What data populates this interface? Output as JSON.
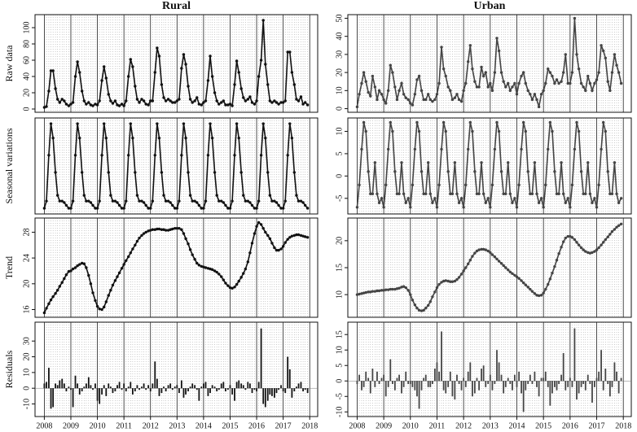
{
  "chart_data": {
    "type": "panels",
    "x": [
      2008,
      2008.08,
      2008.17,
      2008.25,
      2008.33,
      2008.42,
      2008.5,
      2008.58,
      2008.67,
      2008.75,
      2008.83,
      2008.92,
      2009,
      2009.08,
      2009.17,
      2009.25,
      2009.33,
      2009.42,
      2009.5,
      2009.58,
      2009.67,
      2009.75,
      2009.83,
      2009.92,
      2010,
      2010.08,
      2010.17,
      2010.25,
      2010.33,
      2010.42,
      2010.5,
      2010.58,
      2010.67,
      2010.75,
      2010.83,
      2010.92,
      2011,
      2011.08,
      2011.17,
      2011.25,
      2011.33,
      2011.42,
      2011.5,
      2011.58,
      2011.67,
      2011.75,
      2011.83,
      2011.92,
      2012,
      2012.08,
      2012.17,
      2012.25,
      2012.33,
      2012.42,
      2012.5,
      2012.58,
      2012.67,
      2012.75,
      2012.83,
      2012.92,
      2013,
      2013.08,
      2013.17,
      2013.25,
      2013.33,
      2013.42,
      2013.5,
      2013.58,
      2013.67,
      2013.75,
      2013.83,
      2013.92,
      2014,
      2014.08,
      2014.17,
      2014.25,
      2014.33,
      2014.42,
      2014.5,
      2014.58,
      2014.67,
      2014.75,
      2014.83,
      2014.92,
      2015,
      2015.08,
      2015.17,
      2015.25,
      2015.33,
      2015.42,
      2015.5,
      2015.58,
      2015.67,
      2015.75,
      2015.83,
      2015.92,
      2016,
      2016.08,
      2016.17,
      2016.25,
      2016.33,
      2016.42,
      2016.5,
      2016.58,
      2016.67,
      2016.75,
      2016.83,
      2016.92,
      2017,
      2017.08,
      2017.17,
      2017.25,
      2017.33,
      2017.42,
      2017.5,
      2017.58,
      2017.67,
      2017.75,
      2017.83,
      2017.92
    ],
    "xlim": [
      2007.65,
      2018.3
    ],
    "xticks": [
      2008,
      2009,
      2010,
      2011,
      2012,
      2013,
      2014,
      2015,
      2016,
      2017,
      2018
    ],
    "panels": [
      {
        "type": "line",
        "title": "Rural",
        "ylabel": "Raw data",
        "color": "#111111",
        "ylim": [
          -4,
          116
        ],
        "yticks": [
          0,
          20,
          40,
          60,
          80,
          100
        ],
        "values": [
          2,
          3,
          22,
          47,
          47,
          25,
          12,
          8,
          12,
          10,
          6,
          4,
          6,
          8,
          40,
          58,
          45,
          22,
          10,
          6,
          8,
          5,
          4,
          6,
          5,
          10,
          35,
          52,
          38,
          18,
          10,
          7,
          10,
          5,
          4,
          6,
          4,
          10,
          40,
          61,
          52,
          28,
          12,
          8,
          12,
          10,
          6,
          5,
          10,
          10,
          45,
          75,
          65,
          30,
          14,
          10,
          12,
          10,
          8,
          8,
          10,
          12,
          50,
          67,
          55,
          28,
          12,
          8,
          10,
          14,
          6,
          5,
          8,
          10,
          35,
          65,
          40,
          20,
          10,
          6,
          8,
          10,
          5,
          5,
          6,
          4,
          30,
          59,
          45,
          25,
          14,
          10,
          12,
          15,
          8,
          6,
          10,
          40,
          60,
          109,
          55,
          30,
          10,
          8,
          10,
          8,
          6,
          8,
          8,
          10,
          70,
          70,
          45,
          30,
          12,
          10,
          15,
          6,
          8,
          5
        ]
      },
      {
        "type": "line",
        "title": "Urban",
        "color": "#444444",
        "ylim": [
          -2,
          52
        ],
        "yticks": [
          0,
          10,
          20,
          30,
          40,
          50
        ],
        "values": [
          1,
          8,
          14,
          20,
          15,
          9,
          7,
          18,
          12,
          5,
          10,
          8,
          5,
          3,
          10,
          24,
          20,
          12,
          5,
          10,
          14,
          8,
          6,
          5,
          3,
          2,
          8,
          16,
          18,
          10,
          5,
          5,
          8,
          5,
          4,
          5,
          8,
          14,
          34,
          22,
          18,
          12,
          10,
          5,
          6,
          8,
          5,
          4,
          10,
          14,
          26,
          35,
          22,
          15,
          12,
          12,
          23,
          18,
          20,
          12,
          14,
          10,
          20,
          39,
          32,
          20,
          15,
          12,
          14,
          10,
          12,
          14,
          8,
          14,
          18,
          20,
          14,
          10,
          8,
          5,
          8,
          5,
          1,
          8,
          10,
          14,
          22,
          20,
          18,
          14,
          16,
          14,
          15,
          20,
          30,
          14,
          14,
          20,
          50,
          30,
          22,
          14,
          12,
          10,
          18,
          14,
          10,
          14,
          16,
          20,
          35,
          32,
          28,
          15,
          10,
          20,
          30,
          24,
          20,
          14
        ]
      },
      {
        "type": "line",
        "ylabel": "Seasonal variations",
        "color": "#111111",
        "ylim": [
          -21,
          46
        ],
        "values": [
          -17,
          -12,
          20,
          42,
          32,
          8,
          -8,
          -12,
          -12,
          -13,
          -15,
          -17,
          -17,
          -12,
          20,
          42,
          32,
          8,
          -8,
          -12,
          -12,
          -13,
          -15,
          -17,
          -17,
          -12,
          20,
          42,
          32,
          8,
          -8,
          -12,
          -12,
          -13,
          -15,
          -17,
          -17,
          -12,
          20,
          42,
          32,
          8,
          -8,
          -12,
          -12,
          -13,
          -15,
          -17,
          -17,
          -12,
          20,
          42,
          32,
          8,
          -8,
          -12,
          -12,
          -13,
          -15,
          -17,
          -17,
          -12,
          20,
          42,
          32,
          8,
          -8,
          -12,
          -12,
          -13,
          -15,
          -17,
          -17,
          -12,
          20,
          42,
          32,
          8,
          -8,
          -12,
          -12,
          -13,
          -15,
          -17,
          -17,
          -12,
          20,
          42,
          32,
          8,
          -8,
          -12,
          -12,
          -13,
          -15,
          -17,
          -17,
          -12,
          20,
          42,
          32,
          8,
          -8,
          -12,
          -12,
          -13,
          -15,
          -17,
          -17,
          -12,
          20,
          42,
          32,
          8,
          -8,
          -12,
          -12,
          -13,
          -15,
          -17
        ]
      },
      {
        "type": "line",
        "color": "#444444",
        "ylim": [
          -8.5,
          13
        ],
        "yticks": [
          -5,
          0,
          5,
          10
        ],
        "values": [
          -7,
          -2,
          6,
          12,
          10,
          1,
          -4,
          -4,
          3,
          -4,
          -6,
          -5,
          -7,
          -2,
          6,
          12,
          10,
          1,
          -4,
          -4,
          3,
          -4,
          -6,
          -5,
          -7,
          -2,
          6,
          12,
          10,
          1,
          -4,
          -4,
          3,
          -4,
          -6,
          -5,
          -7,
          -2,
          6,
          12,
          10,
          1,
          -4,
          -4,
          3,
          -4,
          -6,
          -5,
          -7,
          -2,
          6,
          12,
          10,
          1,
          -4,
          -4,
          3,
          -4,
          -6,
          -5,
          -7,
          -2,
          6,
          12,
          10,
          1,
          -4,
          -4,
          3,
          -4,
          -6,
          -5,
          -7,
          -2,
          6,
          12,
          10,
          1,
          -4,
          -4,
          3,
          -4,
          -6,
          -5,
          -7,
          -2,
          6,
          12,
          10,
          1,
          -4,
          -4,
          3,
          -4,
          -6,
          -5,
          -7,
          -2,
          6,
          12,
          10,
          1,
          -4,
          -4,
          3,
          -4,
          -6,
          -5,
          -7,
          -2,
          6,
          12,
          10,
          1,
          -4,
          -4,
          3,
          -4,
          -6,
          -5
        ]
      },
      {
        "type": "line",
        "ylabel": "Trend",
        "color": "#111111",
        "ylim": [
          14.8,
          30.2
        ],
        "yticks": [
          16,
          20,
          24,
          28
        ],
        "values": [
          15.5,
          16.2,
          16.9,
          17.5,
          18.0,
          18.5,
          19.0,
          19.6,
          20.2,
          20.8,
          21.4,
          21.9,
          22.0,
          22.3,
          22.5,
          22.8,
          23.0,
          23.2,
          23.1,
          22.5,
          21.3,
          20.0,
          18.6,
          17.4,
          16.5,
          16.1,
          16.0,
          16.4,
          17.2,
          18.2,
          19.0,
          19.8,
          20.5,
          21.1,
          21.7,
          22.4,
          23.0,
          23.6,
          24.2,
          24.8,
          25.4,
          26.0,
          26.6,
          27.1,
          27.5,
          27.8,
          28.0,
          28.2,
          28.3,
          28.4,
          28.4,
          28.5,
          28.5,
          28.4,
          28.4,
          28.3,
          28.3,
          28.4,
          28.5,
          28.6,
          28.6,
          28.6,
          28.4,
          27.8,
          27.0,
          26.2,
          25.3,
          24.5,
          23.8,
          23.2,
          22.9,
          22.7,
          22.6,
          22.5,
          22.4,
          22.3,
          22.2,
          22.0,
          21.8,
          21.5,
          21.1,
          20.6,
          20.1,
          19.7,
          19.4,
          19.3,
          19.5,
          19.9,
          20.4,
          21.0,
          21.6,
          22.3,
          23.4,
          24.8,
          26.3,
          27.8,
          28.9,
          29.5,
          29.2,
          28.6,
          28.0,
          27.5,
          27.0,
          26.3,
          25.6,
          25.2,
          25.2,
          25.4,
          25.8,
          26.4,
          26.9,
          27.2,
          27.4,
          27.5,
          27.6,
          27.6,
          27.5,
          27.4,
          27.3,
          27.2
        ]
      },
      {
        "type": "line",
        "color": "#444444",
        "ylim": [
          5.8,
          24.2
        ],
        "yticks": [
          10,
          15,
          20
        ],
        "values": [
          10.0,
          10.1,
          10.2,
          10.3,
          10.4,
          10.5,
          10.5,
          10.6,
          10.6,
          10.7,
          10.7,
          10.8,
          10.8,
          10.9,
          10.9,
          11.0,
          11.0,
          11.0,
          11.1,
          11.2,
          11.4,
          11.5,
          11.3,
          10.8,
          10.0,
          9.0,
          8.1,
          7.5,
          7.1,
          7.0,
          7.1,
          7.5,
          8.0,
          8.7,
          9.6,
          10.5,
          11.3,
          11.9,
          12.3,
          12.5,
          12.6,
          12.5,
          12.4,
          12.4,
          12.5,
          12.8,
          13.2,
          13.8,
          14.4,
          15.0,
          15.7,
          16.4,
          17.1,
          17.7,
          18.1,
          18.3,
          18.4,
          18.4,
          18.3,
          18.1,
          17.8,
          17.4,
          17.0,
          16.6,
          16.2,
          15.8,
          15.4,
          15.0,
          14.6,
          14.2,
          13.9,
          13.6,
          13.3,
          13.0,
          12.6,
          12.2,
          11.8,
          11.4,
          11.0,
          10.6,
          10.2,
          9.9,
          9.8,
          9.9,
          10.3,
          11.0,
          11.9,
          12.9,
          14.0,
          15.2,
          16.4,
          17.6,
          18.8,
          19.8,
          20.5,
          20.8,
          20.8,
          20.6,
          20.2,
          19.7,
          19.2,
          18.7,
          18.3,
          18.0,
          17.8,
          17.7,
          17.8,
          18.0,
          18.3,
          18.7,
          19.2,
          19.7,
          20.2,
          20.7,
          21.2,
          21.7,
          22.1,
          22.5,
          22.8,
          23.1
        ]
      },
      {
        "type": "bar",
        "ylabel": "Residuals",
        "color": "#111111",
        "ylim": [
          -18,
          42
        ],
        "yticks": [
          -10,
          0,
          10,
          20,
          30
        ],
        "values": [
          3,
          4,
          13,
          -13,
          -12,
          3,
          2,
          5,
          6,
          3,
          -2,
          1,
          -1,
          -12,
          8,
          3,
          -4,
          -2,
          1,
          3,
          7,
          2,
          -1,
          3,
          -8,
          -10,
          -4,
          2,
          -5,
          3,
          1,
          -3,
          -2,
          2,
          4,
          -1,
          3,
          -2,
          1,
          4,
          -4,
          -2,
          2,
          -1,
          1,
          3,
          -1,
          2,
          -2,
          3,
          17,
          6,
          -5,
          -3,
          1,
          -2,
          2,
          3,
          -1,
          1,
          2,
          -3,
          5,
          -6,
          -4,
          -2,
          1,
          3,
          2,
          -1,
          -8,
          1,
          3,
          4,
          -5,
          -3,
          2,
          1,
          -2,
          -1,
          3,
          4,
          -2,
          -1,
          2,
          -4,
          -8,
          4,
          5,
          3,
          2,
          -1,
          4,
          3,
          -3,
          -1,
          -2,
          4,
          38,
          -10,
          -12,
          -8,
          -4,
          -5,
          -6,
          -3,
          -1,
          2,
          -2,
          -3,
          20,
          12,
          -6,
          -2,
          1,
          3,
          4,
          -2,
          -1,
          -3
        ]
      },
      {
        "type": "bar",
        "color": "#444444",
        "ylim": [
          -11.5,
          19
        ],
        "yticks": [
          -10,
          -5,
          0,
          5,
          10,
          15
        ],
        "values": [
          -1,
          2,
          -3,
          -2,
          3,
          1,
          -4,
          4,
          -2,
          3,
          -1,
          1,
          2,
          -5,
          -2,
          7,
          -1,
          -3,
          1,
          2,
          -4,
          -2,
          3,
          -1,
          -1,
          -2,
          -3,
          -5,
          -9,
          -3,
          1,
          2,
          -2,
          -2,
          -1,
          4,
          6,
          3,
          16,
          -3,
          -4,
          -2,
          3,
          -5,
          -6,
          2,
          -1,
          -3,
          1,
          -2,
          3,
          6,
          -5,
          -4,
          1,
          -3,
          4,
          5,
          -2,
          -1,
          2,
          -3,
          -1,
          10,
          6,
          2,
          -4,
          -2,
          1,
          -1,
          -3,
          2,
          -2,
          3,
          -4,
          -10,
          -3,
          -1,
          2,
          -1,
          3,
          -2,
          -5,
          1,
          1,
          3,
          -2,
          -8,
          -4,
          -2,
          -3,
          -1,
          2,
          9,
          -3,
          -2,
          1,
          -2,
          17,
          -6,
          -4,
          -2,
          -1,
          -3,
          2,
          -1,
          -7,
          -2,
          1,
          3,
          10,
          -3,
          4,
          -1,
          -5,
          -2,
          6,
          3,
          -4,
          1
        ]
      }
    ]
  }
}
